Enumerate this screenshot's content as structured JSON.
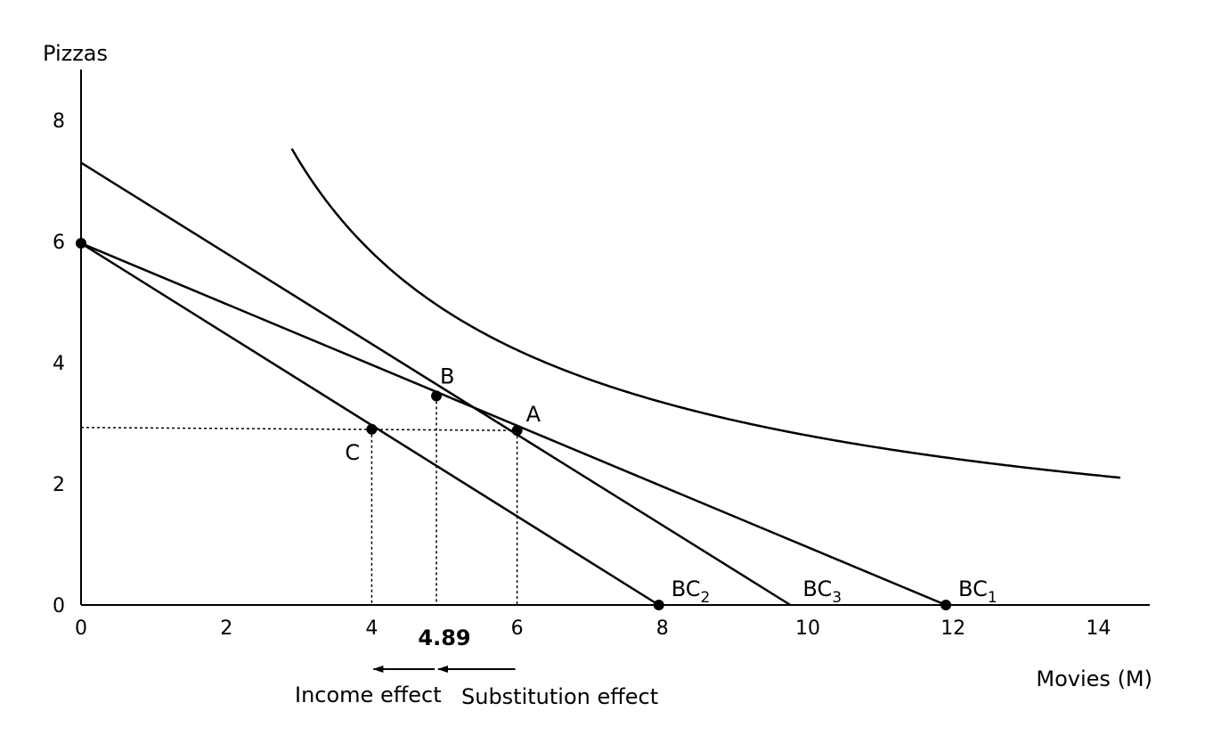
{
  "chart_data": {
    "type": "line",
    "title": "",
    "xlabel": "Movies (M)",
    "ylabel": "Pizzas",
    "xlim": [
      0,
      14
    ],
    "ylim": [
      0,
      8.8
    ],
    "x_ticks": [
      0,
      2,
      4,
      6,
      8,
      10,
      12,
      14
    ],
    "y_ticks": [
      0,
      2,
      4,
      6,
      8
    ],
    "grid": false,
    "series": [
      {
        "name": "BC1",
        "label_main": "BC",
        "label_sub": "1",
        "x": [
          0,
          11.9
        ],
        "y": [
          5.97,
          0
        ]
      },
      {
        "name": "BC2",
        "label_main": "BC",
        "label_sub": "2",
        "x": [
          0,
          7.95
        ],
        "y": [
          5.97,
          0
        ]
      },
      {
        "name": "BC3",
        "label_main": "BC",
        "label_sub": "3",
        "x": [
          0,
          9.76
        ],
        "y": [
          7.3,
          0
        ]
      }
    ],
    "indifference_curve": {
      "name": "Indifference curve",
      "k": 17.65,
      "exponent": 0.8,
      "x_start": 2.9,
      "x_end": 14.3
    },
    "points": [
      {
        "name": "A",
        "x": 6.0,
        "y": 2.88
      },
      {
        "name": "B",
        "x": 4.89,
        "y": 3.45
      },
      {
        "name": "C",
        "x": 4.0,
        "y": 2.9
      },
      {
        "name": "",
        "x": 0,
        "y": 5.97
      },
      {
        "name": "",
        "x": 7.95,
        "y": 0
      },
      {
        "name": "",
        "x": 11.9,
        "y": 0
      }
    ],
    "dashed_guides": [
      {
        "x1": 0,
        "y1": 2.93,
        "x2": 6.0,
        "y2": 2.88
      },
      {
        "x1": 4.0,
        "y1": 2.9,
        "x2": 4.0,
        "y2": 0
      },
      {
        "x1": 4.89,
        "y1": 3.45,
        "x2": 4.89,
        "y2": 0
      },
      {
        "x1": 6.0,
        "y1": 2.88,
        "x2": 6.0,
        "y2": 0
      }
    ],
    "highlight_value": "4.89",
    "annotations": [
      {
        "text": "Income effect",
        "arrow_from": 4.89,
        "arrow_to": 4.0
      },
      {
        "text": "Substitution effect",
        "arrow_from": 6.0,
        "arrow_to": 4.89
      }
    ]
  }
}
